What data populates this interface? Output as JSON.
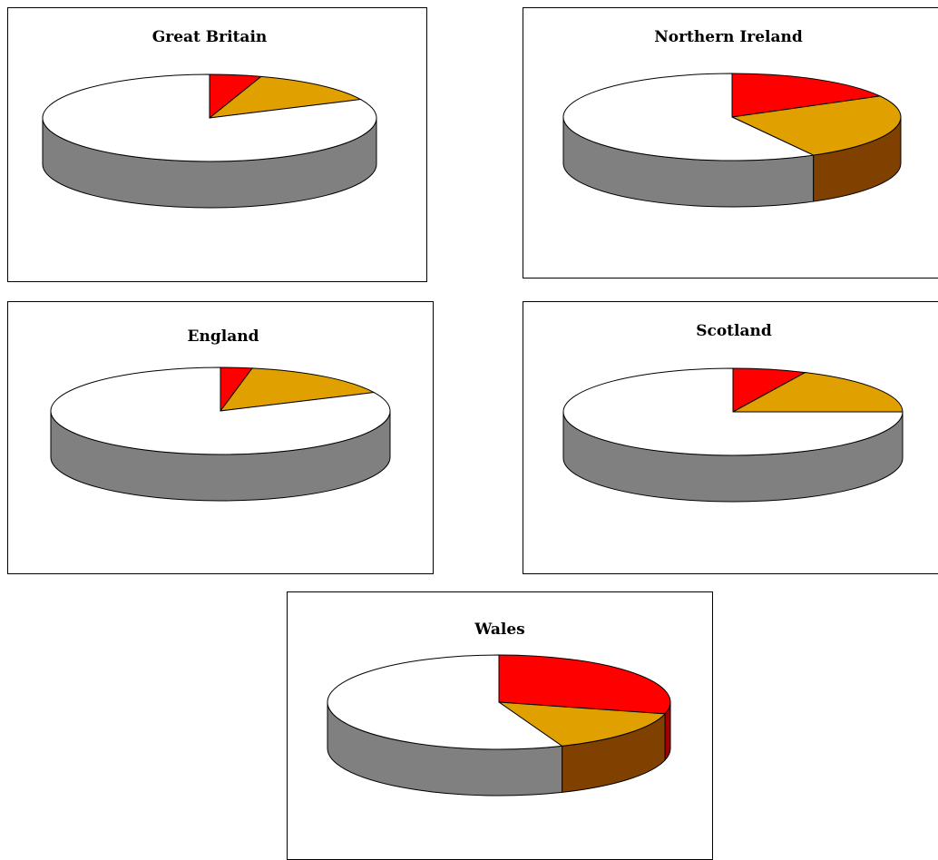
{
  "colors": {
    "red": "#ff0000",
    "orange": "#e0a000",
    "orange_side": "#804000",
    "white": "#ffffff",
    "grey_side": "#808080",
    "border": "#000000"
  },
  "chart_data": [
    {
      "type": "pie",
      "title": "Great Britain",
      "style": "3d",
      "slices": [
        {
          "value": 5,
          "color": "#ff0000"
        },
        {
          "value": 13,
          "color": "#e0a000"
        },
        {
          "value": 82,
          "color": "#ffffff"
        }
      ]
    },
    {
      "type": "pie",
      "title": "Northern Ireland",
      "style": "3d",
      "slices": [
        {
          "value": 17,
          "color": "#ff0000"
        },
        {
          "value": 25,
          "color": "#e0a000"
        },
        {
          "value": 58,
          "color": "#ffffff"
        }
      ]
    },
    {
      "type": "pie",
      "title": "England",
      "style": "3d",
      "slices": [
        {
          "value": 3,
          "color": "#ff0000"
        },
        {
          "value": 15,
          "color": "#e0a000"
        },
        {
          "value": 82,
          "color": "#ffffff"
        }
      ]
    },
    {
      "type": "pie",
      "title": "Scotland",
      "style": "3d",
      "slices": [
        {
          "value": 7,
          "color": "#ff0000"
        },
        {
          "value": 18,
          "color": "#e0a000"
        },
        {
          "value": 75,
          "color": "#ffffff"
        }
      ]
    },
    {
      "type": "pie",
      "title": "Wales",
      "style": "3d",
      "slices": [
        {
          "value": 29,
          "color": "#ff0000"
        },
        {
          "value": 15,
          "color": "#e0a000"
        },
        {
          "value": 56,
          "color": "#ffffff"
        }
      ]
    }
  ]
}
